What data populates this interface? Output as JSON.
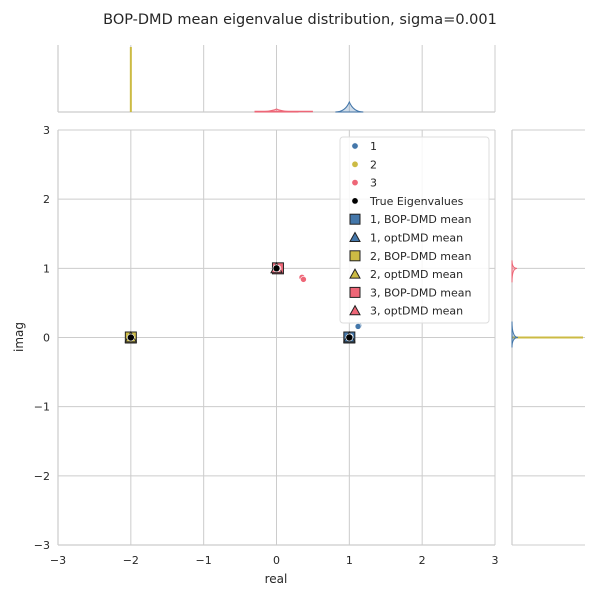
{
  "title": "BOP-DMD mean eigenvalue distribution, sigma=0.001",
  "colors": {
    "series1": "#4477aa",
    "series2": "#ccbb44",
    "series3": "#ee6677",
    "black": "#000000",
    "grid": "#cccccc"
  },
  "chart_data": {
    "type": "scatter",
    "title": "BOP-DMD mean eigenvalue distribution, sigma=0.001",
    "xlabel": "real",
    "ylabel": "imag",
    "xlim": [
      -3,
      3
    ],
    "ylim": [
      -3,
      3
    ],
    "xticks": [
      "−3",
      "−2",
      "−1",
      "0",
      "1",
      "2",
      "3"
    ],
    "yticks": [
      "−3",
      "−2",
      "−1",
      "0",
      "1",
      "2",
      "3"
    ],
    "grid": true,
    "legend_position": "top-right",
    "marginal_plots": "kde",
    "series": [
      {
        "name": "1",
        "marker": "circle",
        "colorKey": "series1",
        "points": [
          [
            1.0,
            0.0
          ],
          [
            1.01,
            0.01
          ],
          [
            1.13,
            0.17
          ],
          [
            1.12,
            0.16
          ]
        ]
      },
      {
        "name": "2",
        "marker": "circle",
        "colorKey": "series2",
        "points": [
          [
            -2.0,
            0.0
          ],
          [
            -2.0,
            0.0
          ]
        ]
      },
      {
        "name": "3",
        "marker": "circle",
        "colorKey": "series3",
        "points": [
          [
            0.0,
            1.0
          ],
          [
            0.02,
            1.0
          ],
          [
            0.35,
            0.87
          ],
          [
            0.37,
            0.84
          ]
        ]
      },
      {
        "name": "True Eigenvalues",
        "marker": "circle",
        "colorKey": "black",
        "points": [
          [
            1.0,
            0.0
          ],
          [
            -2.0,
            0.0
          ],
          [
            0.0,
            1.0
          ]
        ]
      },
      {
        "name": "1, BOP-DMD mean",
        "marker": "square",
        "colorKey": "series1",
        "points": [
          [
            1.0,
            0.0
          ]
        ]
      },
      {
        "name": "1, optDMD mean",
        "marker": "triangle",
        "colorKey": "series1",
        "points": [
          [
            1.0,
            0.0
          ]
        ]
      },
      {
        "name": "2, BOP-DMD mean",
        "marker": "square",
        "colorKey": "series2",
        "points": [
          [
            -2.0,
            0.0
          ]
        ]
      },
      {
        "name": "2, optDMD mean",
        "marker": "triangle",
        "colorKey": "series2",
        "points": [
          [
            -2.0,
            0.0
          ]
        ]
      },
      {
        "name": "3, BOP-DMD mean",
        "marker": "square",
        "colorKey": "series3",
        "points": [
          [
            0.02,
            1.0
          ]
        ]
      },
      {
        "name": "3, optDMD mean",
        "marker": "triangle",
        "colorKey": "series3",
        "points": [
          [
            0.0,
            1.0
          ]
        ]
      }
    ]
  }
}
